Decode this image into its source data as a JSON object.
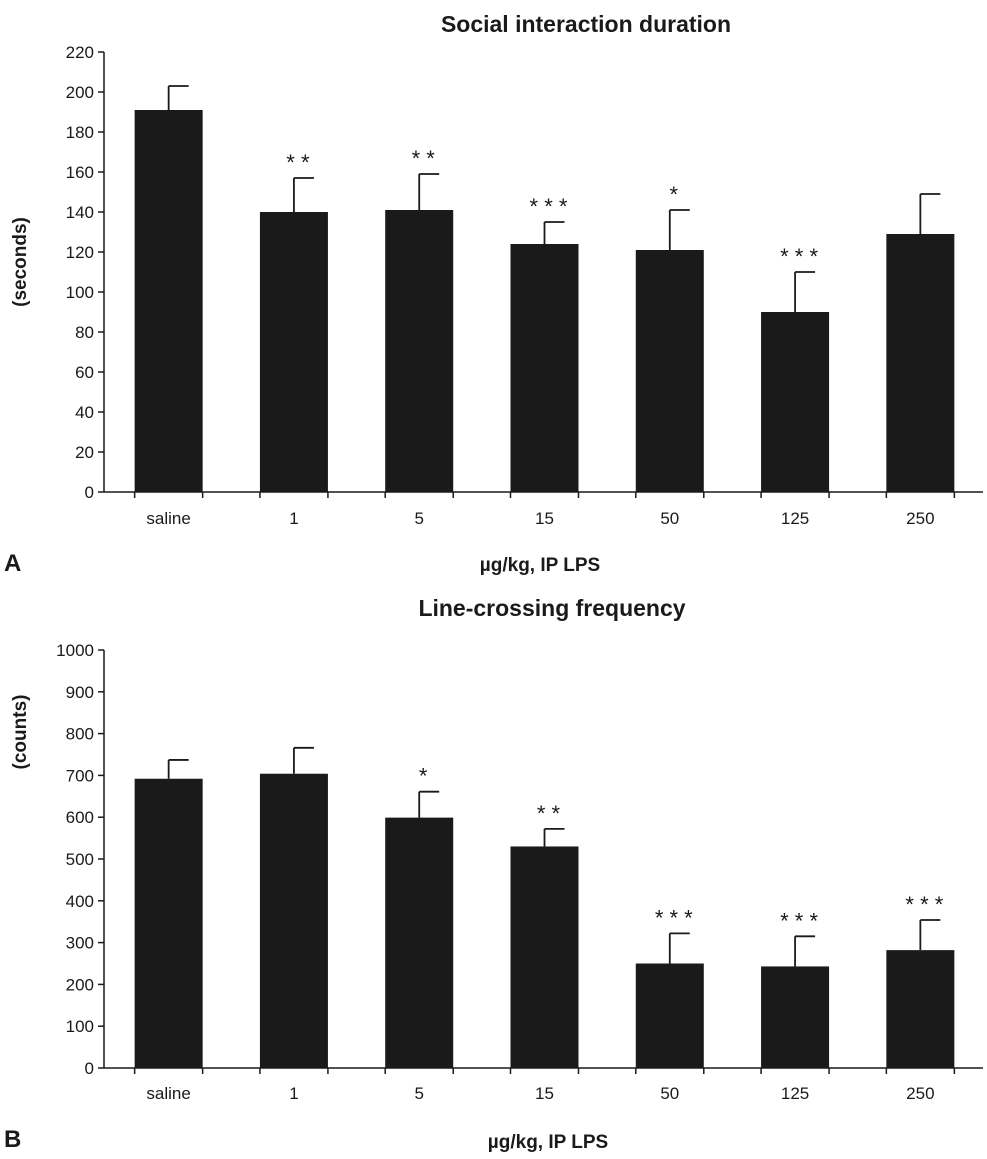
{
  "colors": {
    "bar": "#1a1a1a",
    "axis": "#1a1a1a",
    "background": "#ffffff"
  },
  "chart_data": [
    {
      "type": "bar",
      "panel": "A",
      "title": "Social interaction duration",
      "xlabel": "µg/kg, IP LPS",
      "ylabel": "(seconds)",
      "ylim": [
        0,
        220
      ],
      "yticks": [
        0,
        20,
        40,
        60,
        80,
        100,
        120,
        140,
        160,
        180,
        200,
        220
      ],
      "categories": [
        "saline",
        "1",
        "5",
        "15",
        "50",
        "125",
        "250"
      ],
      "values": [
        191,
        140,
        141,
        124,
        121,
        90,
        129
      ],
      "errors": [
        12,
        17,
        18,
        11,
        20,
        20,
        20
      ],
      "significance": [
        "",
        "* *",
        "* *",
        "* * *",
        "*",
        "* * *",
        ""
      ],
      "grid": false,
      "legend": "none"
    },
    {
      "type": "bar",
      "panel": "B",
      "title": "Line-crossing frequency",
      "xlabel": "µg/kg, IP LPS",
      "ylabel": "(counts)",
      "ylim": [
        0,
        1000
      ],
      "yticks": [
        0,
        100,
        200,
        300,
        400,
        500,
        600,
        700,
        800,
        900,
        1000
      ],
      "categories": [
        "saline",
        "1",
        "5",
        "15",
        "50",
        "125",
        "250"
      ],
      "values": [
        692,
        704,
        599,
        530,
        250,
        243,
        282
      ],
      "errors": [
        45,
        62,
        62,
        42,
        72,
        72,
        72
      ],
      "significance": [
        "",
        "",
        "*",
        "* *",
        "* * *",
        "* * *",
        "* * *"
      ],
      "grid": false,
      "legend": "none"
    }
  ]
}
